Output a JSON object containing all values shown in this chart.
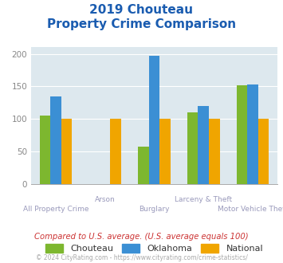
{
  "title_line1": "2019 Chouteau",
  "title_line2": "Property Crime Comparison",
  "categories": [
    "All Property Crime",
    "Arson",
    "Burglary",
    "Larceny & Theft",
    "Motor Vehicle Theft"
  ],
  "cat_labels_row1": [
    "",
    "Arson",
    "",
    "Larceny & Theft",
    ""
  ],
  "cat_labels_row2": [
    "All Property Crime",
    "",
    "Burglary",
    "",
    "Motor Vehicle Theft"
  ],
  "series": {
    "Chouteau": [
      105,
      0,
      58,
      110,
      152
    ],
    "Oklahoma": [
      135,
      0,
      197,
      120,
      153
    ],
    "National": [
      100,
      100,
      100,
      100,
      100
    ]
  },
  "colors": {
    "Chouteau": "#7db72f",
    "Oklahoma": "#3b8fd4",
    "National": "#f0a500"
  },
  "ylim": [
    0,
    210
  ],
  "yticks": [
    0,
    50,
    100,
    150,
    200
  ],
  "plot_bg": "#dde8ee",
  "footer_text": "Compared to U.S. average. (U.S. average equals 100)",
  "copyright_text": "© 2024 CityRating.com - https://www.cityrating.com/crime-statistics/",
  "title_color": "#1a5cb0",
  "footer_color": "#cc3333",
  "copyright_color": "#aaaaaa",
  "xlabel_color": "#9999bb",
  "tick_color": "#888888"
}
